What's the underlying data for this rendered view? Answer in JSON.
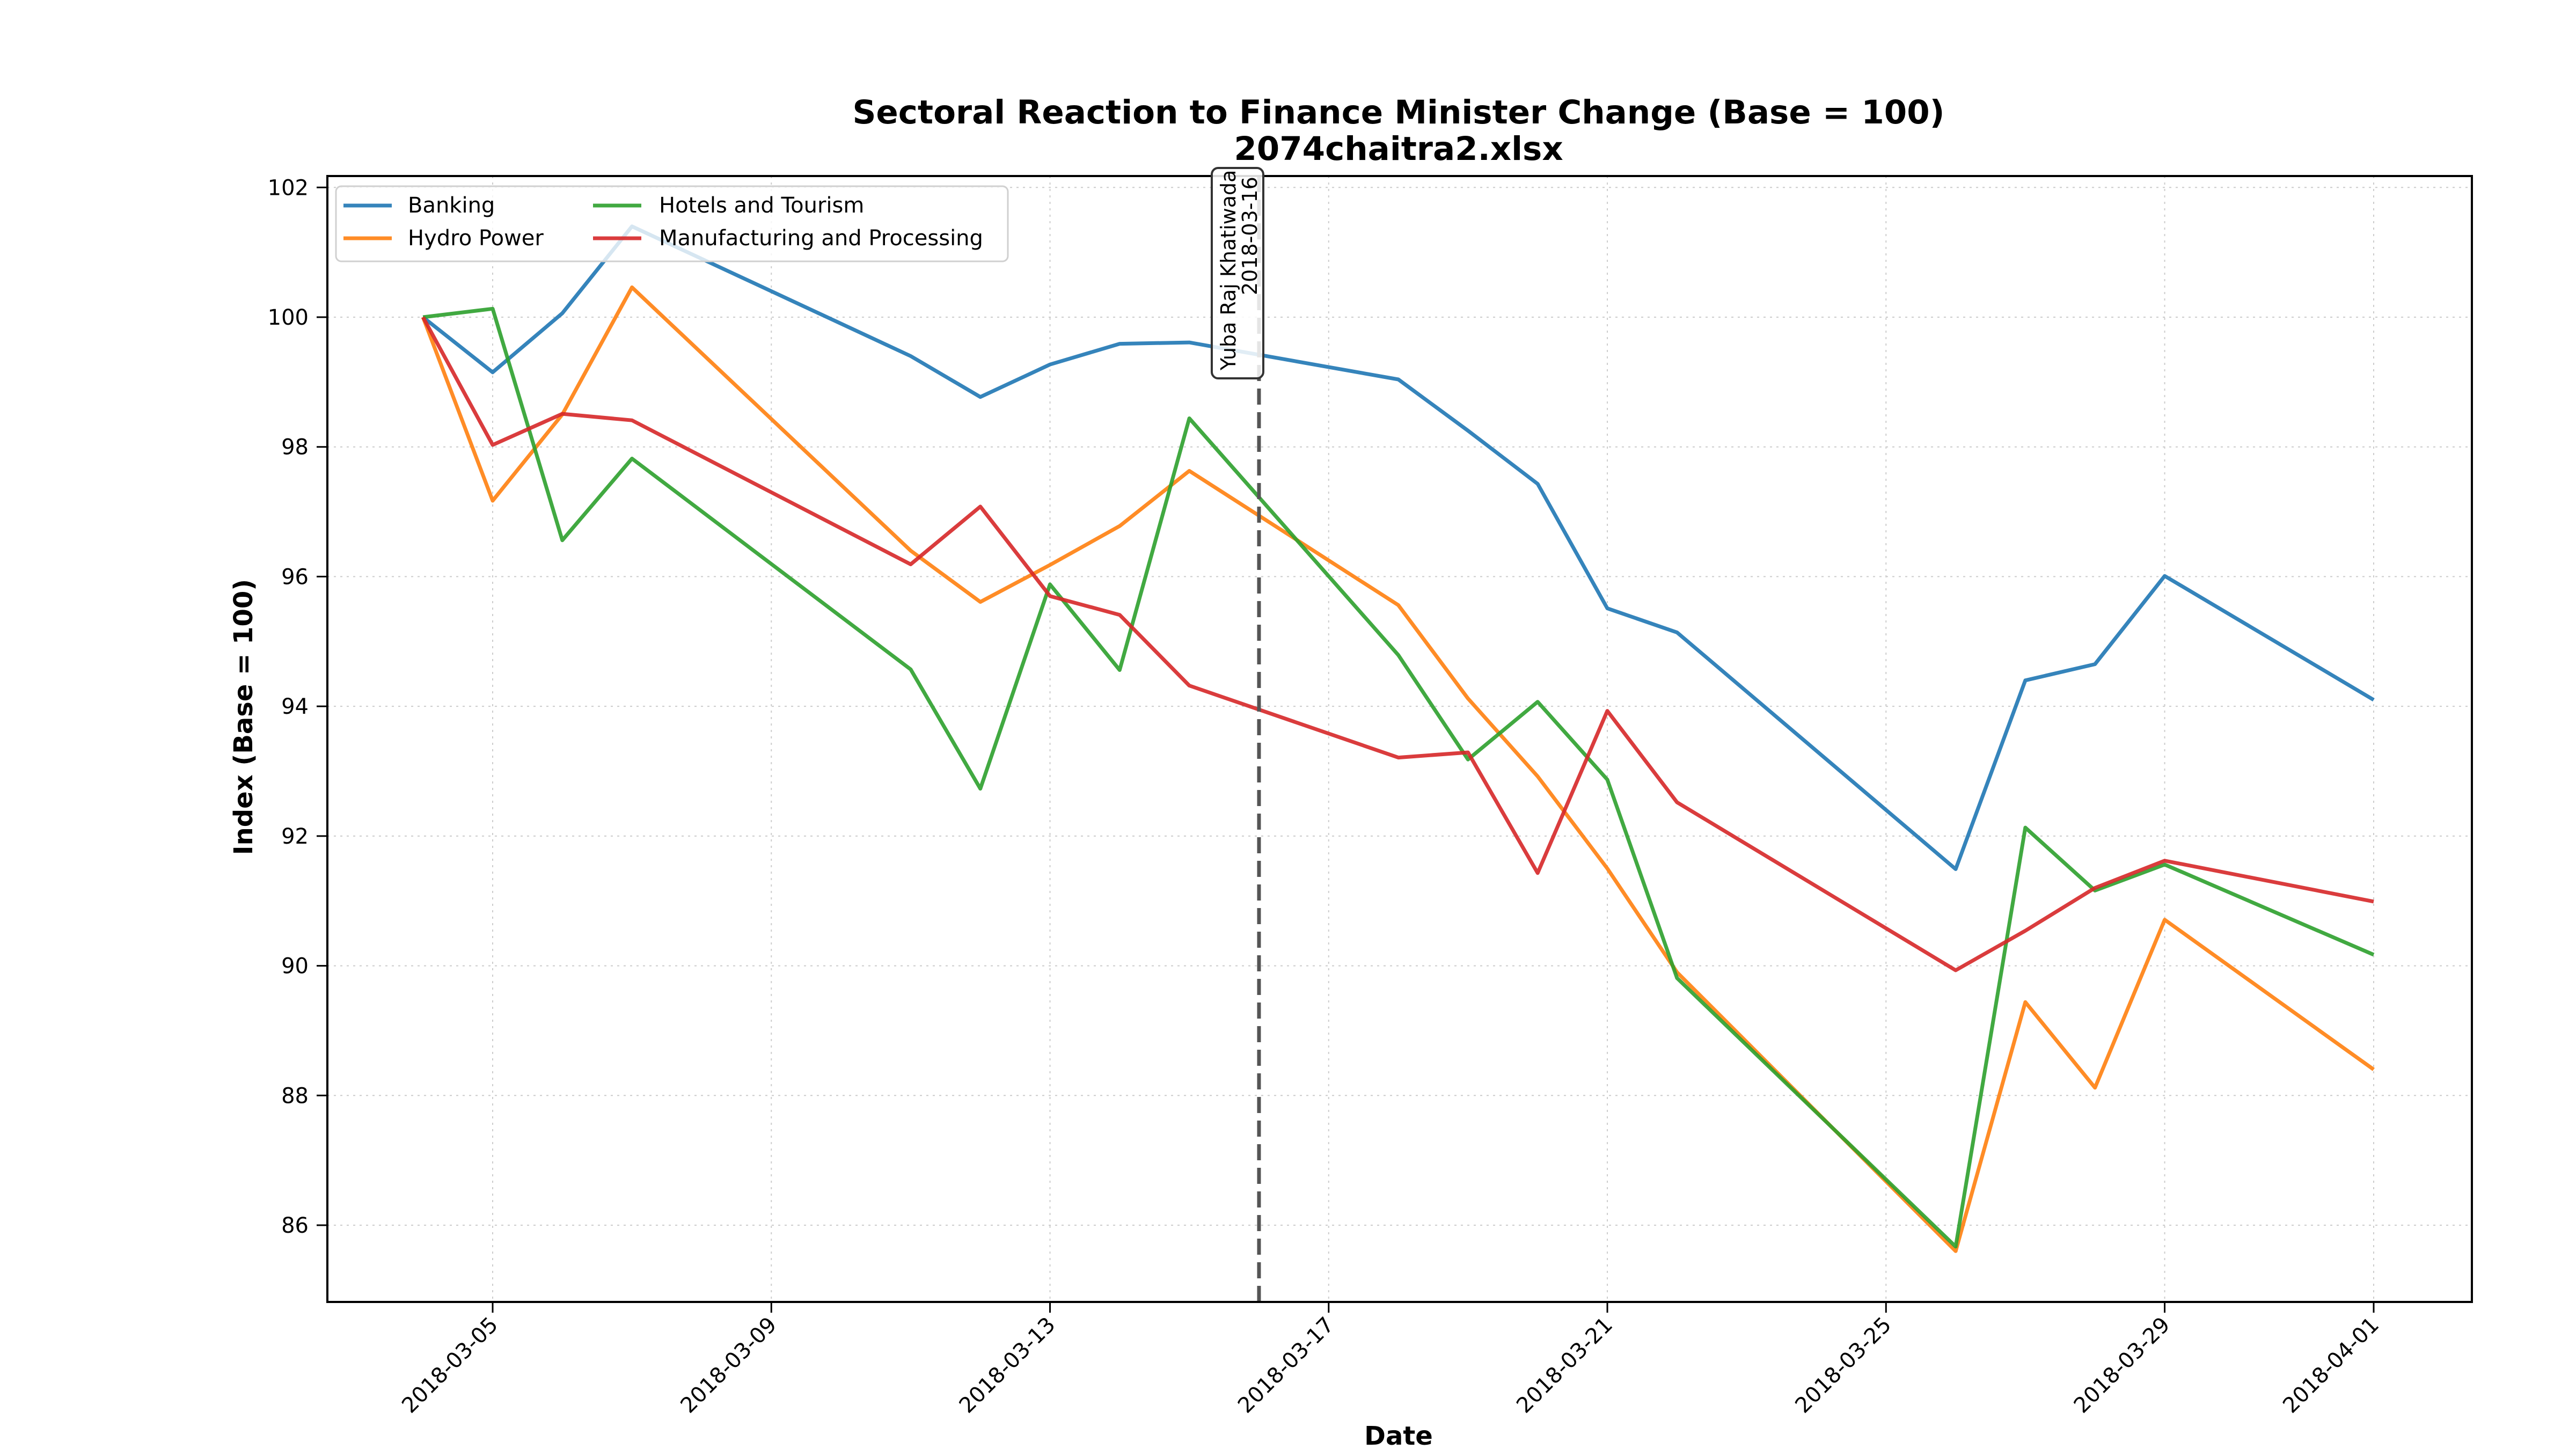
{
  "chart_data": {
    "type": "line",
    "title": "Sectoral Reaction to Finance Minister Change (Base = 100)",
    "subtitle": "2074chaitra2.xlsx",
    "xlabel": "Date",
    "ylabel": "Index (Base = 100)",
    "ylim": [
      84.8,
      102.2
    ],
    "xlim": [
      "2018-03-03",
      "2018-04-02"
    ],
    "grid": true,
    "legend_position": "top-left",
    "yticks": [
      86,
      88,
      90,
      92,
      94,
      96,
      98,
      100,
      102
    ],
    "xticks": [
      "2018-03-05",
      "2018-03-09",
      "2018-03-13",
      "2018-03-17",
      "2018-03-21",
      "2018-03-25",
      "2018-03-29",
      "2018-04-01"
    ],
    "x": [
      "2018-03-04",
      "2018-03-05",
      "2018-03-06",
      "2018-03-07",
      "2018-03-11",
      "2018-03-12",
      "2018-03-13",
      "2018-03-14",
      "2018-03-15",
      "2018-03-18",
      "2018-03-19",
      "2018-03-20",
      "2018-03-21",
      "2018-03-22",
      "2018-03-26",
      "2018-03-27",
      "2018-03-28",
      "2018-03-29",
      "2018-04-01"
    ],
    "series": [
      {
        "name": "Banking",
        "color": "#1f77b4",
        "values": [
          100,
          99.15,
          100.06,
          101.4,
          99.4,
          98.77,
          99.27,
          99.59,
          99.61,
          99.04,
          98.25,
          97.43,
          95.51,
          95.14,
          91.49,
          94.4,
          94.65,
          96.01,
          94.1
        ]
      },
      {
        "name": "Hydro Power",
        "color": "#ff7f0e",
        "values": [
          100,
          97.17,
          98.5,
          100.46,
          96.4,
          95.61,
          96.18,
          96.78,
          97.63,
          95.56,
          94.12,
          92.92,
          91.5,
          89.9,
          85.6,
          89.44,
          88.12,
          90.71,
          88.4
        ]
      },
      {
        "name": "Hotels and Tourism",
        "color": "#2ca02c",
        "values": [
          100,
          100.13,
          96.56,
          97.82,
          94.57,
          92.73,
          95.88,
          94.56,
          98.44,
          94.79,
          93.18,
          94.07,
          92.87,
          89.81,
          85.67,
          92.13,
          91.16,
          91.56,
          90.17
        ]
      },
      {
        "name": "Manufacturing and Processing",
        "color": "#d62728",
        "values": [
          100,
          98.03,
          98.51,
          98.41,
          96.19,
          97.08,
          95.7,
          95.41,
          94.32,
          93.21,
          93.29,
          91.43,
          93.93,
          92.52,
          89.93,
          90.54,
          91.2,
          91.62,
          90.99
        ]
      }
    ],
    "annotations": [
      {
        "type": "vline",
        "x": "2018-03-16",
        "label_line1": "Yuba Raj Khatiwada",
        "label_line2": "2018-03-16",
        "color": "#555555"
      }
    ]
  }
}
